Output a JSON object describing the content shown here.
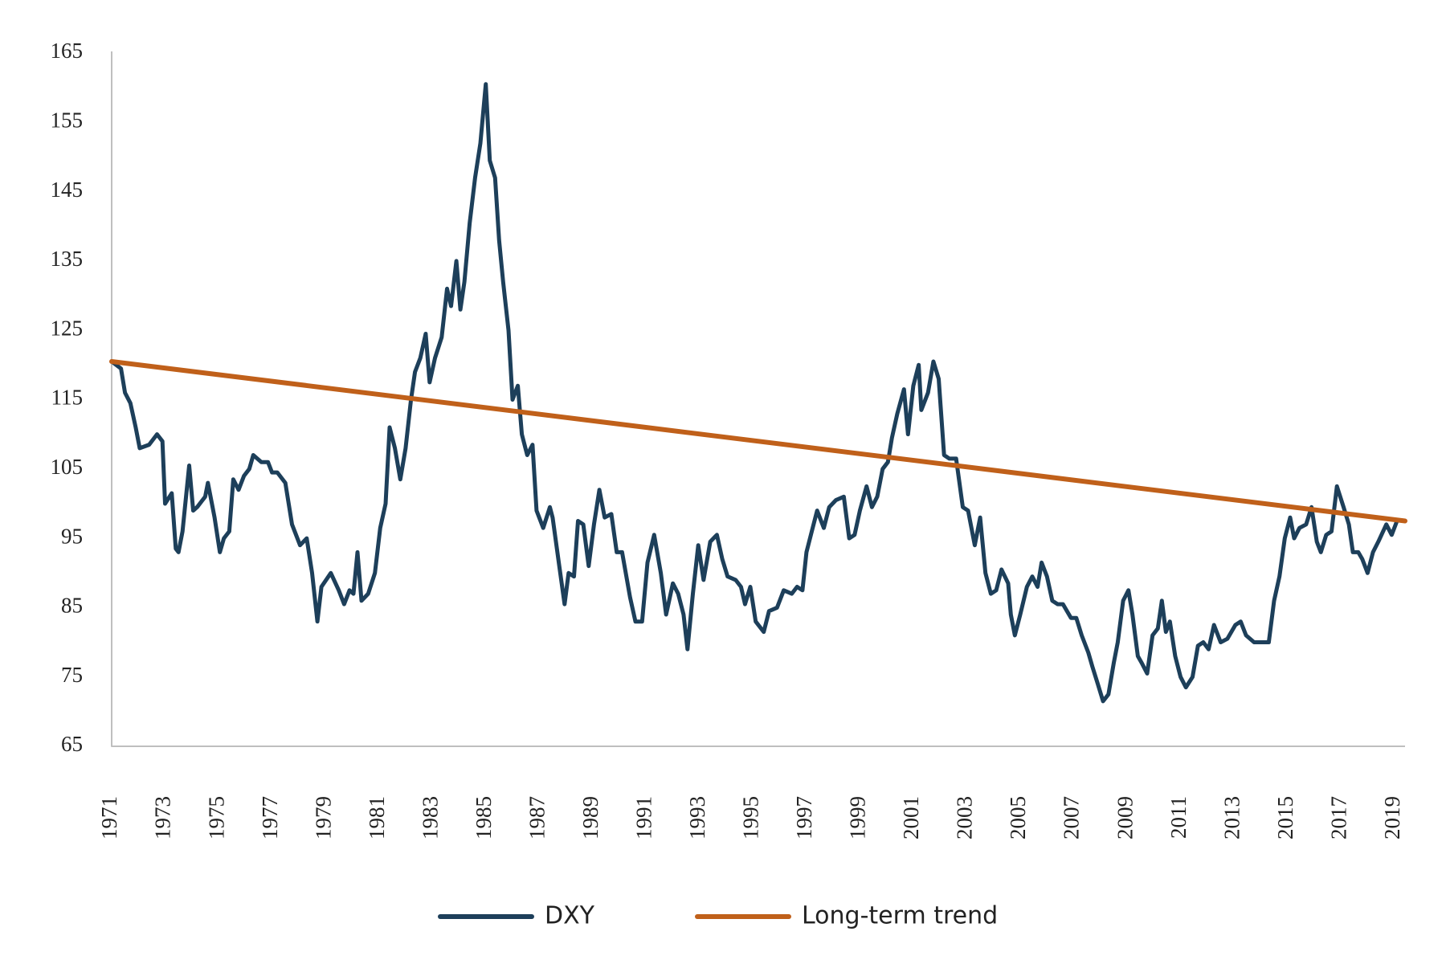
{
  "chart_data": {
    "type": "line",
    "xlim": [
      1971,
      2019.4
    ],
    "xticks": [
      1971,
      1973,
      1975,
      1977,
      1979,
      1981,
      1983,
      1985,
      1987,
      1989,
      1991,
      1993,
      1995,
      1997,
      1999,
      2001,
      2003,
      2005,
      2007,
      2009,
      2011,
      2013,
      2015,
      2017,
      2019
    ],
    "ylim": [
      65,
      165
    ],
    "yticks": [
      65,
      75,
      85,
      95,
      105,
      115,
      125,
      135,
      145,
      155,
      165
    ],
    "grid": false,
    "legend": "bottom",
    "series": [
      {
        "name": "DXY",
        "color": "#1d3f5a",
        "x": [
          1971.0,
          1971.35,
          1971.5,
          1971.7,
          1971.9,
          1972.05,
          1972.4,
          1972.7,
          1972.9,
          1973.0,
          1973.25,
          1973.4,
          1973.5,
          1973.65,
          1973.9,
          1974.05,
          1974.2,
          1974.5,
          1974.6,
          1974.85,
          1975.05,
          1975.2,
          1975.4,
          1975.55,
          1975.75,
          1975.95,
          1976.15,
          1976.3,
          1976.6,
          1976.85,
          1977.0,
          1977.2,
          1977.5,
          1977.75,
          1978.05,
          1978.3,
          1978.5,
          1978.7,
          1978.85,
          1979.2,
          1979.5,
          1979.7,
          1979.9,
          1980.05,
          1980.2,
          1980.35,
          1980.6,
          1980.85,
          1981.05,
          1981.25,
          1981.4,
          1981.6,
          1981.8,
          1982.0,
          1982.2,
          1982.35,
          1982.55,
          1982.75,
          1982.9,
          1983.1,
          1983.35,
          1983.55,
          1983.7,
          1983.9,
          1984.05,
          1984.2,
          1984.4,
          1984.6,
          1984.8,
          1985.0,
          1985.15,
          1985.35,
          1985.5,
          1985.65,
          1985.85,
          1986.0,
          1986.2,
          1986.35,
          1986.55,
          1986.75,
          1986.9,
          1987.15,
          1987.4,
          1987.5,
          1987.75,
          1987.95,
          1988.1,
          1988.3,
          1988.45,
          1988.65,
          1988.85,
          1989.05,
          1989.25,
          1989.45,
          1989.7,
          1989.9,
          1990.1,
          1990.4,
          1990.6,
          1990.85,
          1991.05,
          1991.3,
          1991.55,
          1991.75,
          1992.0,
          1992.2,
          1992.4,
          1992.55,
          1992.75,
          1992.95,
          1993.15,
          1993.4,
          1993.65,
          1993.85,
          1994.05,
          1994.35,
          1994.55,
          1994.7,
          1994.9,
          1995.1,
          1995.4,
          1995.6,
          1995.9,
          1996.15,
          1996.45,
          1996.65,
          1996.85,
          1997.0,
          1997.2,
          1997.4,
          1997.65,
          1997.85,
          1998.1,
          1998.4,
          1998.6,
          1998.8,
          1999.0,
          1999.25,
          1999.45,
          1999.65,
          1999.85,
          2000.05,
          2000.2,
          2000.4,
          2000.65,
          2000.8,
          2001.0,
          2001.2,
          2001.3,
          2001.55,
          2001.75,
          2001.95,
          2002.15,
          2002.35,
          2002.6,
          2002.85,
          2003.05,
          2003.3,
          2003.5,
          2003.7,
          2003.9,
          2004.1,
          2004.3,
          2004.55,
          2004.65,
          2004.8,
          2005.0,
          2005.25,
          2005.45,
          2005.65,
          2005.8,
          2006.0,
          2006.2,
          2006.4,
          2006.6,
          2006.9,
          2007.1,
          2007.3,
          2007.55,
          2007.7,
          2007.9,
          2008.1,
          2008.3,
          2008.5,
          2008.65,
          2008.85,
          2009.05,
          2009.2,
          2009.4,
          2009.55,
          2009.75,
          2009.95,
          2010.15,
          2010.3,
          2010.45,
          2010.6,
          2010.8,
          2011.0,
          2011.2,
          2011.45,
          2011.65,
          2011.85,
          2012.05,
          2012.25,
          2012.5,
          2012.75,
          2013.05,
          2013.25,
          2013.45,
          2013.75,
          2014.0,
          2014.3,
          2014.5,
          2014.7,
          2014.9,
          2015.1,
          2015.25,
          2015.45,
          2015.7,
          2015.9,
          2016.1,
          2016.25,
          2016.45,
          2016.65,
          2016.85,
          2017.1,
          2017.3,
          2017.45,
          2017.65,
          2017.8,
          2018.0,
          2018.2,
          2018.4,
          2018.7,
          2018.9,
          2019.1
        ],
        "values": [
          120.5,
          119.5,
          116,
          114.5,
          111,
          108,
          108.5,
          110,
          109,
          100,
          101.5,
          93.5,
          93,
          96,
          105.5,
          99,
          99.5,
          101,
          103,
          98,
          93,
          95,
          96,
          103.5,
          102,
          104,
          105,
          107,
          106,
          106,
          104.5,
          104.5,
          103,
          97,
          94,
          95,
          90,
          83,
          88,
          90,
          87.5,
          85.5,
          87.5,
          87,
          93,
          86,
          87,
          90,
          96.5,
          100,
          111,
          108,
          103.5,
          108,
          115,
          119,
          121,
          124.5,
          117.5,
          121,
          124,
          131,
          128.5,
          135,
          128,
          132,
          140.5,
          147,
          152,
          160.5,
          149.5,
          147,
          138,
          132,
          125,
          115,
          117,
          110,
          107,
          108.5,
          99,
          96.5,
          99.5,
          98,
          91,
          85.5,
          90,
          89.5,
          97.5,
          97,
          91,
          97,
          102,
          98,
          98.5,
          93,
          93,
          86.5,
          83,
          83,
          91.5,
          95.5,
          90,
          84,
          88.5,
          87,
          84,
          79,
          87,
          94,
          89,
          94.5,
          95.5,
          92,
          89.5,
          89,
          88,
          85.5,
          88,
          83,
          81.5,
          84.5,
          85,
          87.5,
          87,
          88,
          87.5,
          93,
          96,
          99,
          96.5,
          99.5,
          100.5,
          101,
          95,
          95.5,
          99,
          102.5,
          99.5,
          101,
          105,
          106,
          109.5,
          113,
          116.5,
          110,
          117,
          120,
          113.5,
          116,
          120.5,
          118,
          107,
          106.5,
          106.5,
          99.5,
          99,
          94,
          98,
          90,
          87,
          87.5,
          90.5,
          88.5,
          84,
          81,
          84,
          88,
          89.5,
          88,
          91.5,
          89.5,
          86,
          85.5,
          85.5,
          83.5,
          83.5,
          81,
          78.5,
          76.5,
          74,
          71.5,
          72.5,
          77,
          80,
          86,
          87.5,
          84,
          78,
          77,
          75.5,
          81,
          82,
          86,
          81.5,
          83,
          78,
          75,
          73.5,
          75,
          79.5,
          80,
          79,
          82.5,
          80,
          80.5,
          82.5,
          83,
          81,
          80,
          80,
          80,
          86,
          89.5,
          95,
          98,
          95,
          96.5,
          97,
          99.5,
          94.5,
          93,
          95.5,
          96,
          102.5,
          99.5,
          97,
          93,
          93,
          92,
          90,
          93,
          94.5,
          97,
          95.5,
          97.5
        ]
      },
      {
        "name": "Long-term trend",
        "color": "#c0601a",
        "x": [
          1971,
          2019.4
        ],
        "values": [
          120.5,
          97.5
        ]
      }
    ]
  }
}
